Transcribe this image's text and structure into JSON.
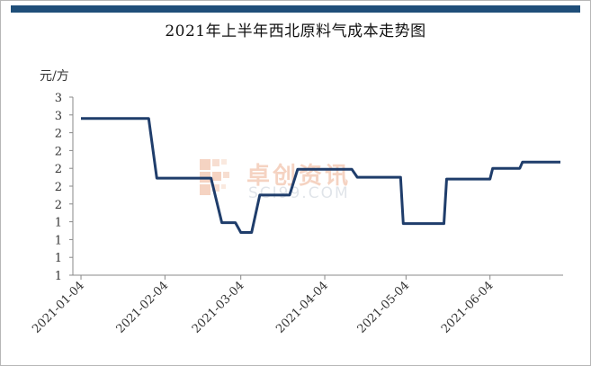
{
  "title": "2021年上半年西北原料气成本走势图",
  "unit_label": "元/方",
  "watermark": {
    "cn": "卓创资讯",
    "en": "SCI99.COM"
  },
  "colors": {
    "line": "#1f3d6b",
    "topbar": "#1f4e79",
    "axis": "#888888"
  },
  "chart_data": {
    "type": "line",
    "title": "2021年上半年西北原料气成本走势图",
    "ylabel": "元/方",
    "xlabel": "",
    "x_ticks": [
      "2021-01-04",
      "2021-02-04",
      "2021-03-04",
      "2021-04-04",
      "2021-05-04",
      "2021-06-04"
    ],
    "y_tick_labels": [
      "3",
      "3",
      "2",
      "2",
      "2",
      "2",
      "2",
      "1",
      "1",
      "1",
      "1"
    ],
    "ylim": [
      1.0,
      3.0
    ],
    "grid": false,
    "legend": "none",
    "series": [
      {
        "points": [
          [
            "2021-01-04",
            2.76
          ],
          [
            "2021-01-29",
            2.76
          ],
          [
            "2021-02-01",
            2.09
          ],
          [
            "2021-02-21",
            2.09
          ],
          [
            "2021-02-25",
            1.59
          ],
          [
            "2021-03-02",
            1.59
          ],
          [
            "2021-03-04",
            1.48
          ],
          [
            "2021-03-08",
            1.48
          ],
          [
            "2021-03-11",
            1.9
          ],
          [
            "2021-03-22",
            1.9
          ],
          [
            "2021-03-25",
            2.19
          ],
          [
            "2021-04-14",
            2.19
          ],
          [
            "2021-04-16",
            2.1
          ],
          [
            "2021-05-02",
            2.1
          ],
          [
            "2021-05-03",
            1.58
          ],
          [
            "2021-05-18",
            1.58
          ],
          [
            "2021-05-19",
            2.08
          ],
          [
            "2021-06-04",
            2.08
          ],
          [
            "2021-06-05",
            2.2
          ],
          [
            "2021-06-15",
            2.2
          ],
          [
            "2021-06-16",
            2.27
          ],
          [
            "2021-06-30",
            2.27
          ]
        ]
      }
    ]
  }
}
